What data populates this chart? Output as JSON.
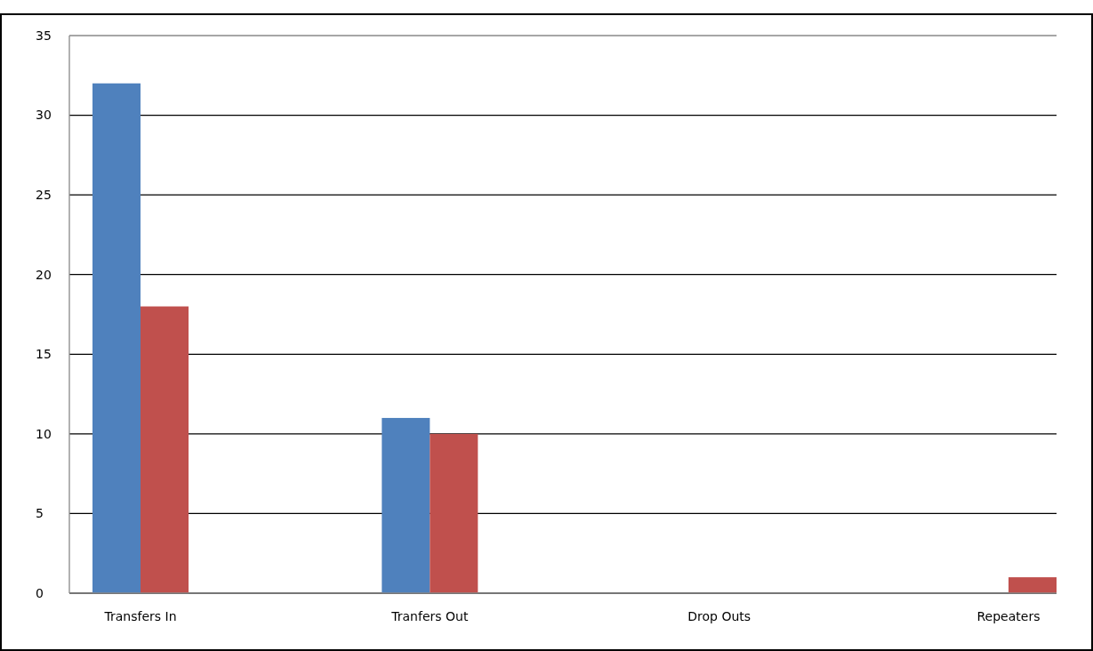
{
  "chart_data": {
    "type": "bar",
    "categories": [
      "Transfers In",
      "Tranfers Out",
      "Drop Outs",
      "Repeaters"
    ],
    "series": [
      {
        "color": "#4f81bd",
        "values": [
          32,
          11,
          0,
          0
        ]
      },
      {
        "color": "#c0504d",
        "values": [
          18,
          10,
          0,
          1
        ]
      }
    ],
    "ylim": [
      0,
      35
    ],
    "yticks": [
      0,
      5,
      10,
      15,
      20,
      25,
      30,
      35
    ],
    "grid": "y"
  }
}
